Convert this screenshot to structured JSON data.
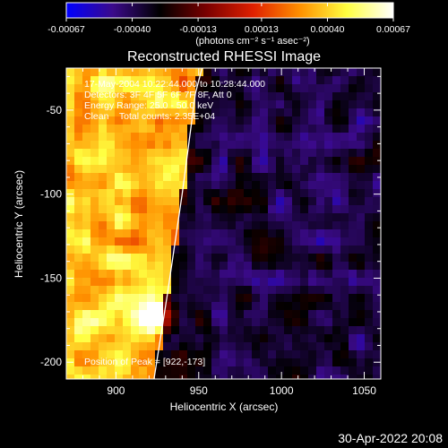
{
  "colorbar": {
    "tick_labels": [
      "-0.00067",
      "-0.00040",
      "-0.00013",
      "0.00013",
      "0.00040",
      "0.00067"
    ],
    "unit_label": "(photons cm⁻² s⁻¹ asec⁻²)",
    "range": [
      -0.00067,
      0.00067
    ],
    "colormap_stops": [
      "#0000ff",
      "#3b0a8a",
      "#000000",
      "#7a0000",
      "#e02000",
      "#ff9000",
      "#ffff40",
      "#ffffff"
    ]
  },
  "chart_data": {
    "type": "heatmap",
    "title": "Reconstructed RHESSI Image",
    "xlabel": "Heliocentric X (arcsec)",
    "ylabel": "Heliocentric Y (arcsec)",
    "xlim": [
      870,
      1060
    ],
    "ylim": [
      -210,
      -25
    ],
    "x_ticks": [
      900,
      950,
      1000,
      1050
    ],
    "y_ticks": [
      -50,
      -100,
      -150,
      -200
    ],
    "annotations": [
      "17-May-2004 10:22:44.000 to 10:28:44.000",
      "Detectors: 3F 4F 5F 6F 7F 8F, Att 0",
      "Energy Range: 25.0 - 50.0 keV",
      "Clean    Total counts: 2.35E+04"
    ],
    "peak_label": "Position of Peak = [922,-173]",
    "peak": [
      922,
      -173
    ],
    "limb_curve": [
      [
        923,
        -210
      ],
      [
        931,
        -160
      ],
      [
        940,
        -100
      ],
      [
        948,
        -40
      ],
      [
        952,
        -25
      ]
    ]
  },
  "timestamp": "30-Apr-2022 20:08"
}
